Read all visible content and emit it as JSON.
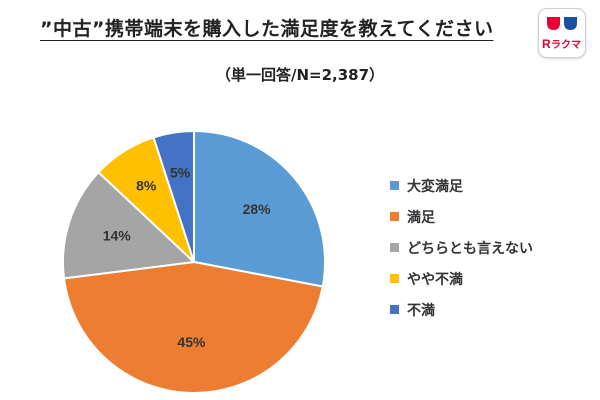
{
  "header": {
    "title": "”中古”携帯端末を購入した満足度を教えてください",
    "subtitle": "（単一回答/N=2,387）"
  },
  "logo": {
    "text": "ラクマ",
    "mark": "R",
    "brand_color": "#e60033",
    "accent_color": "#1a4fa3"
  },
  "chart_data": {
    "type": "pie",
    "title": "”中古”携帯端末を購入した満足度を教えてください",
    "subtitle": "（単一回答/N=2,387）",
    "start_angle_deg": 0,
    "direction": "clockwise",
    "legend_position": "right",
    "slices": [
      {
        "label": "大変満足",
        "value": 28,
        "display": "28%",
        "color": "#5b9bd5"
      },
      {
        "label": "満足",
        "value": 45,
        "display": "45%",
        "color": "#ed7d31"
      },
      {
        "label": "どちらとも言えない",
        "value": 14,
        "display": "14%",
        "color": "#a5a5a5"
      },
      {
        "label": "やや不満",
        "value": 8,
        "display": "8%",
        "color": "#ffc000"
      },
      {
        "label": "不満",
        "value": 5,
        "display": "5%",
        "color": "#4472c4"
      }
    ]
  }
}
